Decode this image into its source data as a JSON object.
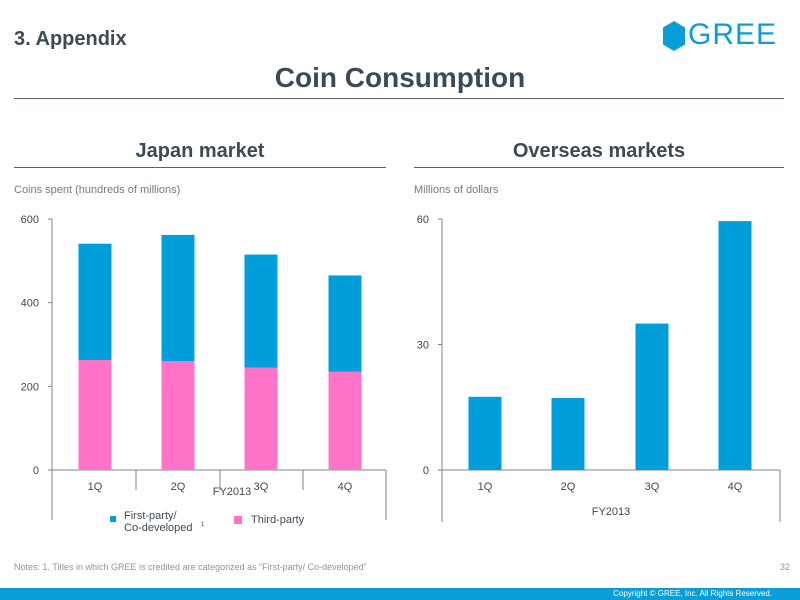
{
  "header": {
    "section": "3. Appendix",
    "title": "Coin Consumption",
    "logo_text": "GREE"
  },
  "footer": {
    "notes": "Notes: 1. Titles in which GREE is credited are categorized as “First-party/ Co-developed”",
    "page_number": "32",
    "copyright": "Copyright © GREE, Inc. All Rights Reserved."
  },
  "colors": {
    "accent": "#0a9ed9",
    "first_party": "#009fdb",
    "third_party": "#ff73c9"
  },
  "chart_data": [
    {
      "type": "bar",
      "stacked": true,
      "title": "Japan market",
      "ylabel": "Coins spent (hundreds of millions)",
      "xlabel": "FY2013",
      "categories": [
        "1Q",
        "2Q",
        "3Q",
        "4Q"
      ],
      "yticks": [
        0,
        200,
        400,
        600
      ],
      "ylim": [
        0,
        600
      ],
      "series": [
        {
          "name": "Third-party",
          "color": "#ff73c9",
          "values": [
            263,
            260,
            245,
            235
          ]
        },
        {
          "name": "First-party/ Co-developed",
          "color": "#009fdb",
          "values": [
            278,
            302,
            270,
            230
          ]
        }
      ],
      "legend": [
        {
          "label": "First-party/",
          "label2": "Co-developed",
          "sup": "1",
          "color": "#009fdb"
        },
        {
          "label": "Third-party",
          "color": "#ff73c9"
        }
      ]
    },
    {
      "type": "bar",
      "title": "Overseas markets",
      "ylabel": "Millions of dollars",
      "xlabel": "FY2013",
      "categories": [
        "1Q",
        "2Q",
        "3Q",
        "4Q"
      ],
      "yticks": [
        0,
        30,
        60
      ],
      "ylim": [
        0,
        60
      ],
      "series": [
        {
          "name": "Overseas",
          "color": "#009fdb",
          "values": [
            17.5,
            17.2,
            35,
            59.5
          ]
        }
      ]
    }
  ]
}
